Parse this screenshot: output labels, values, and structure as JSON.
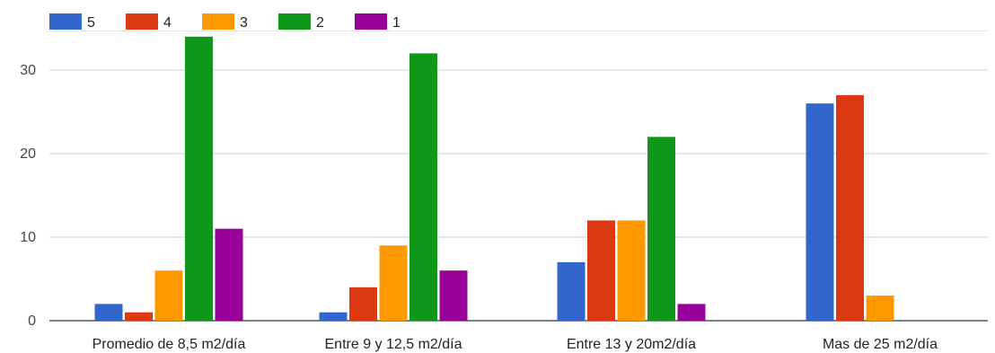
{
  "chart_data": {
    "type": "bar",
    "categories": [
      "Promedio de 8,5 m2/día",
      "Entre 9 y 12,5 m2/día",
      "Entre 13 y 20m2/día",
      "Mas de 25 m2/día"
    ],
    "series": [
      {
        "name": "5",
        "color": "#3366cc",
        "values": [
          2,
          1,
          7,
          26
        ]
      },
      {
        "name": "4",
        "color": "#dc3912",
        "values": [
          1,
          4,
          12,
          27
        ]
      },
      {
        "name": "3",
        "color": "#ff9900",
        "values": [
          6,
          9,
          12,
          3
        ]
      },
      {
        "name": "2",
        "color": "#109618",
        "values": [
          34,
          32,
          22,
          0
        ]
      },
      {
        "name": "1",
        "color": "#990099",
        "values": [
          11,
          6,
          2,
          0
        ]
      }
    ],
    "yticks": [
      0,
      10,
      20,
      30
    ],
    "ylim": [
      0,
      35
    ],
    "grid": true,
    "legend": "top-left"
  }
}
